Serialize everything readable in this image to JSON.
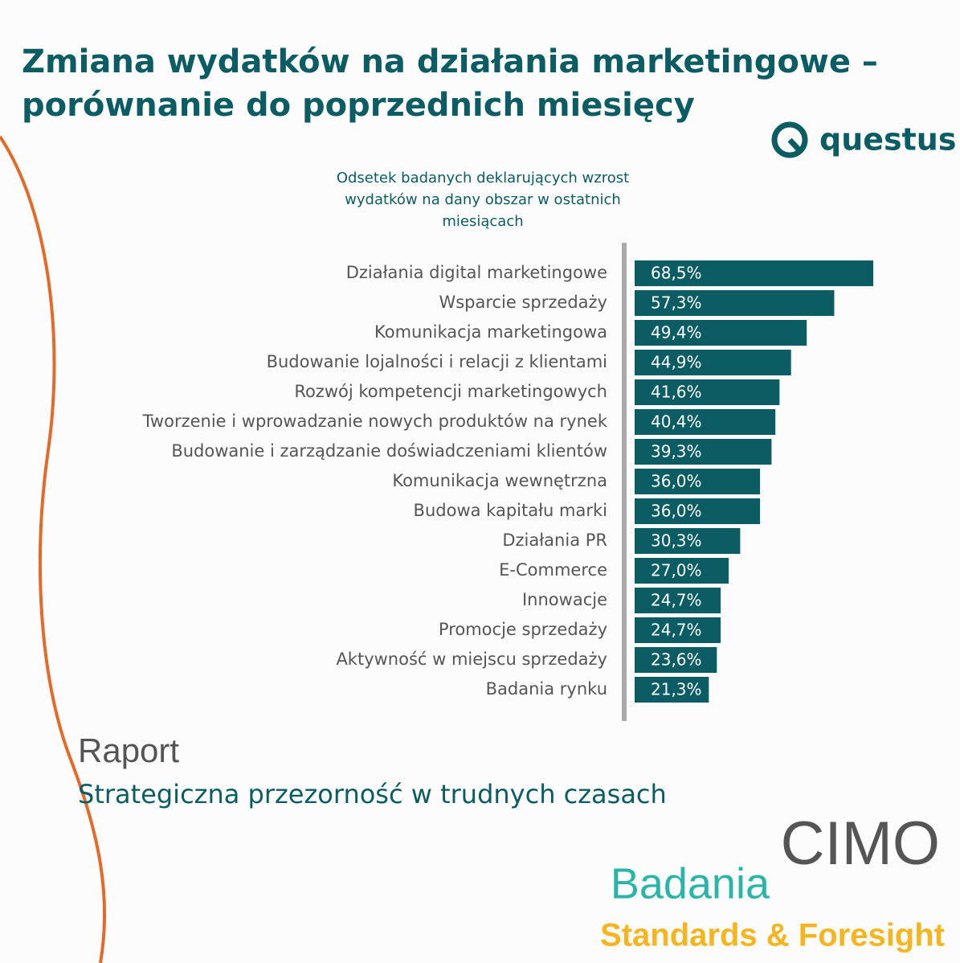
{
  "chart_data": {
    "type": "barh",
    "title": "Zmiana wydatków na działania marketingowe – porównanie do poprzednich miesięcy",
    "subtitle": "Odsetek badanych deklarujących wzrost wydatków na dany obszar w ostatnich miesiącach",
    "categories": [
      "Działania digital marketingowe",
      "Wsparcie sprzedaży",
      "Komunikacja marketingowa",
      "Budowanie lojalności i relacji z klientami",
      "Rozwój kompetencji marketingowych",
      "Tworzenie i wprowadzanie nowych produktów na rynek",
      "Budowanie i zarządzanie doświadczeniami klientów",
      "Komunikacja wewnętrzna",
      "Budowa kapitału marki",
      "Działania PR",
      "E-Commerce",
      "Innowacje",
      "Promocje sprzedaży",
      "Aktywność w miejscu sprzedaży",
      "Badania rynku"
    ],
    "values": [
      68.5,
      57.3,
      49.4,
      44.9,
      41.6,
      40.4,
      39.3,
      36.0,
      36.0,
      30.3,
      27.0,
      24.7,
      24.7,
      23.6,
      21.3
    ],
    "value_labels": [
      "68,5%",
      "57,3%",
      "49,4%",
      "44,9%",
      "41,6%",
      "40,4%",
      "39,3%",
      "36,0%",
      "36,0%",
      "30,3%",
      "27,0%",
      "24,7%",
      "24,7%",
      "23,6%",
      "21,3%"
    ],
    "color": "#0b5c63"
  },
  "logo": "questus",
  "report": {
    "label": "Raport",
    "title": "Strategiczna przezorność w trudnych czasach"
  },
  "brand": {
    "cimo": "CIMO",
    "badania": "Badania",
    "tagline": "Standards & Foresight"
  }
}
